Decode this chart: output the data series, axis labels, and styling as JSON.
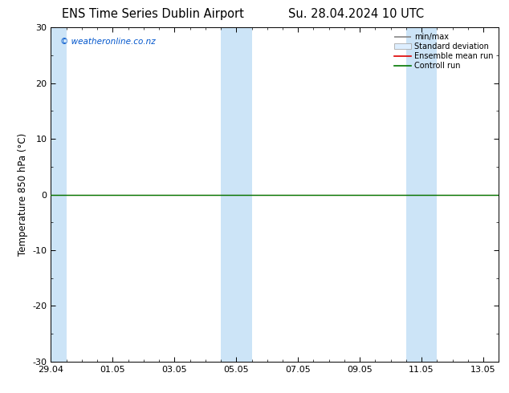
{
  "title_left": "ENS Time Series Dublin Airport",
  "title_right": "Su. 28.04.2024 10 UTC",
  "ylabel": "Temperature 850 hPa (°C)",
  "ylim": [
    -30,
    30
  ],
  "yticks": [
    -30,
    -20,
    -10,
    0,
    10,
    20,
    30
  ],
  "xlim_start": 0,
  "xlim_end": 14,
  "xtick_labels": [
    "29.04",
    "01.05",
    "03.05",
    "05.05",
    "07.05",
    "09.05",
    "11.05",
    "13.05"
  ],
  "xtick_positions": [
    0,
    2,
    4,
    6,
    8,
    10,
    12,
    14
  ],
  "watermark": "© weatheronline.co.nz",
  "watermark_color": "#0055cc",
  "bg_color": "#ffffff",
  "plot_bg_color": "#ffffff",
  "band_color": "#cce4f7",
  "band_starts": [
    0,
    5.5,
    6.0,
    11.5,
    12.0
  ],
  "band_ends": [
    0.5,
    6.0,
    6.5,
    12.0,
    12.5
  ],
  "control_run_y": 0,
  "control_run_color": "#007700",
  "ensemble_mean_color": "#dd0000",
  "minmax_color": "#888888",
  "stddev_color": "#cccccc",
  "legend_labels": [
    "min/max",
    "Standard deviation",
    "Ensemble mean run",
    "Controll run"
  ],
  "title_fontsize": 10.5,
  "label_fontsize": 8.5,
  "tick_fontsize": 8
}
